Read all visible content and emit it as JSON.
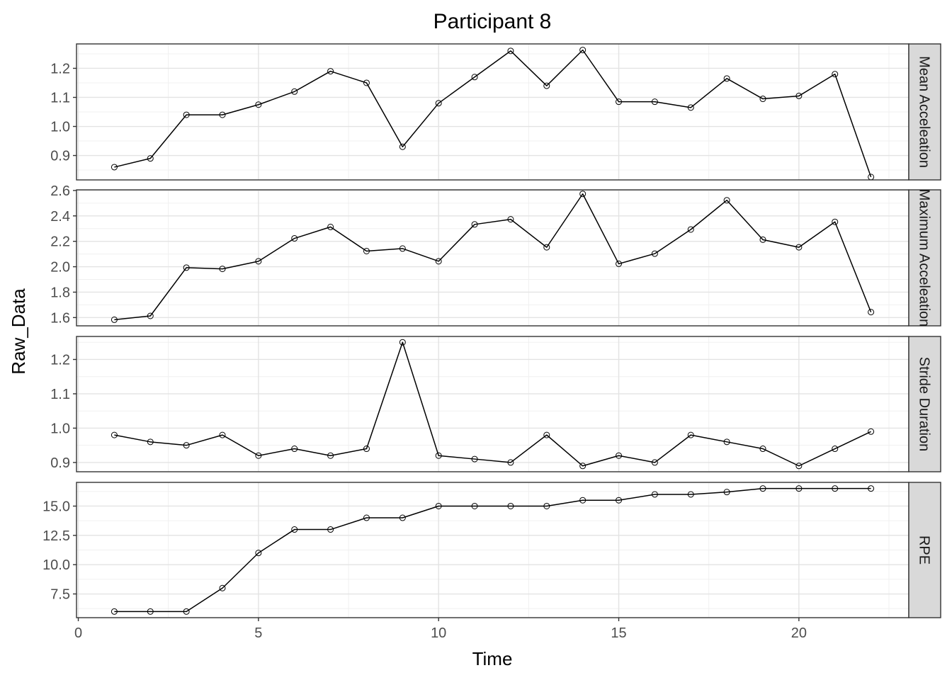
{
  "chart_data": {
    "type": "line",
    "title": "Participant 8",
    "xlabel": "Time",
    "ylabel": "Raw_Data",
    "x": [
      1,
      2,
      3,
      4,
      5,
      6,
      7,
      8,
      9,
      10,
      11,
      12,
      13,
      14,
      15,
      16,
      17,
      18,
      19,
      20,
      21,
      22
    ],
    "xlim": [
      -0.05,
      23.05
    ],
    "xticks": [
      0,
      5,
      10,
      15,
      20
    ],
    "grid": true,
    "facets": [
      {
        "label": "Mean Acceleation",
        "ylim": [
          0.816,
          1.284
        ],
        "yticks": [
          0.9,
          1.0,
          1.1,
          1.2
        ],
        "ytick_labels": [
          "0.9",
          "1.0",
          "1.1",
          "1.2"
        ],
        "values": [
          0.86,
          0.89,
          1.04,
          1.04,
          1.075,
          1.12,
          1.19,
          1.15,
          0.93,
          1.08,
          1.17,
          1.26,
          1.14,
          1.263,
          1.085,
          1.085,
          1.065,
          1.165,
          1.095,
          1.105,
          1.18,
          0.826
        ]
      },
      {
        "label": "Maximum Acceleation",
        "ylim": [
          1.535,
          2.605
        ],
        "yticks": [
          1.6,
          1.8,
          2.0,
          2.2,
          2.4,
          2.6
        ],
        "ytick_labels": [
          "1.6",
          "1.8",
          "2.0",
          "2.2",
          "2.4",
          "2.6"
        ],
        "values": [
          1.583,
          1.613,
          1.993,
          1.983,
          2.043,
          2.223,
          2.313,
          2.123,
          2.143,
          2.043,
          2.333,
          2.373,
          2.153,
          2.573,
          2.023,
          2.103,
          2.293,
          2.523,
          2.213,
          2.153,
          2.353,
          1.643
        ]
      },
      {
        "label": "Stride Duration",
        "ylim": [
          0.873,
          1.267
        ],
        "yticks": [
          0.9,
          1.0,
          1.1,
          1.2
        ],
        "ytick_labels": [
          "0.9",
          "1.0",
          "1.1",
          "1.2"
        ],
        "values": [
          0.98,
          0.96,
          0.95,
          0.98,
          0.92,
          0.94,
          0.92,
          0.94,
          1.25,
          0.92,
          0.91,
          0.9,
          0.98,
          0.89,
          0.92,
          0.9,
          0.98,
          0.96,
          0.94,
          0.89,
          0.94,
          0.99
        ]
      },
      {
        "label": "RPE",
        "ylim": [
          5.475,
          17.025
        ],
        "yticks": [
          7.5,
          10.0,
          12.5,
          15.0
        ],
        "ytick_labels": [
          "7.5",
          "10.0",
          "12.5",
          "15.0"
        ],
        "values": [
          6,
          6,
          6,
          8,
          11,
          13,
          13,
          14,
          14,
          15,
          15,
          15,
          15,
          15.5,
          15.5,
          16,
          16,
          16.2,
          16.5,
          16.5,
          16.5,
          16.5
        ]
      }
    ]
  }
}
